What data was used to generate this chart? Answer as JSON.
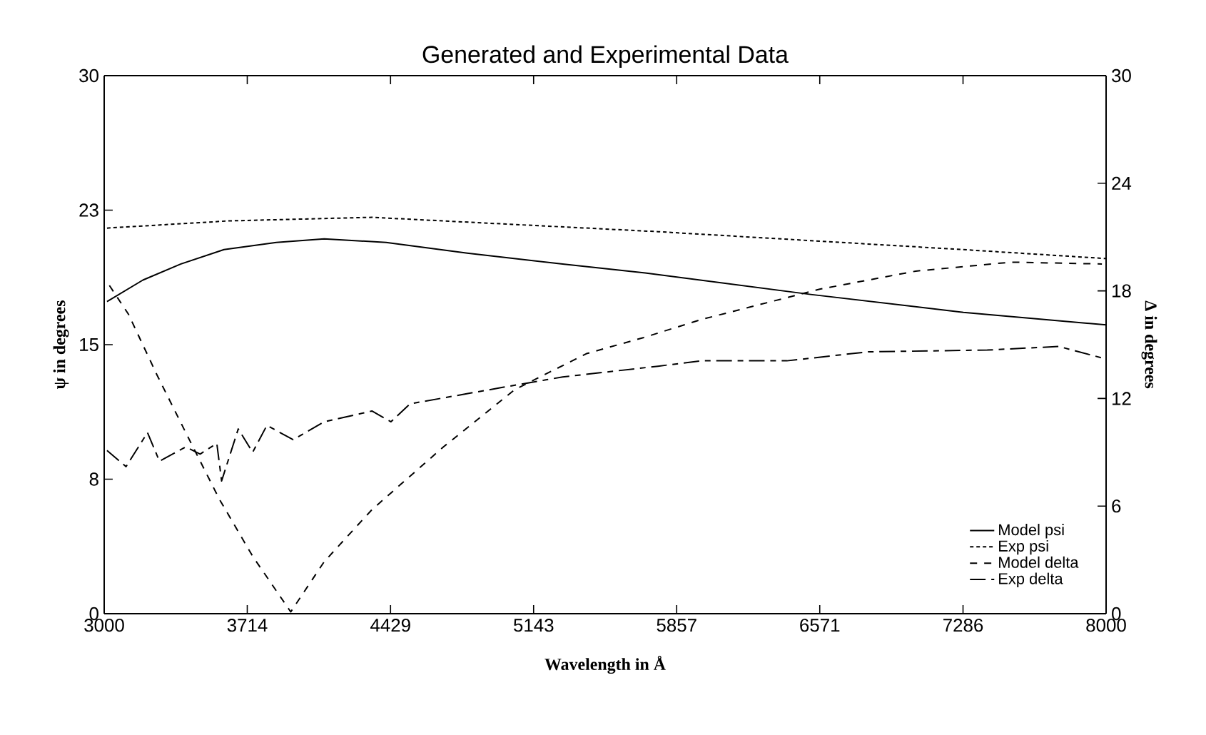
{
  "chart_data": {
    "type": "line",
    "title": "Generated and Experimental Data",
    "xlabel": "Wavelength in Å",
    "ylabel": "ψ in degrees",
    "y2label": "Δ in degrees",
    "xlim": [
      3000,
      8000
    ],
    "xticks": [
      3000,
      3714,
      4429,
      5143,
      5857,
      6571,
      7286,
      8000
    ],
    "ylim": [
      0,
      30
    ],
    "yticks": [
      0,
      {
        "value": 7.5,
        "label": "8"
      },
      15,
      {
        "value": 22.5,
        "label": "23"
      },
      30
    ],
    "y2lim": [
      0,
      30
    ],
    "y2ticks": [
      0,
      6,
      12,
      18,
      24,
      30
    ],
    "legend": "bottom right",
    "grid": false,
    "marker": "none",
    "series": [
      {
        "name": "Model psi",
        "color": "#000000",
        "line_style": "solid",
        "x": [
          3014,
          3193,
          3383,
          3598,
          3859,
          4098,
          4407,
          4812,
          5288,
          5700,
          6526,
          7288,
          8000
        ],
        "values": [
          17.4,
          18.6,
          19.5,
          20.3,
          20.7,
          20.9,
          20.7,
          20.1,
          19.5,
          19.0,
          17.8,
          16.8,
          16.1
        ]
      },
      {
        "name": "Exp psi",
        "color": "#000000",
        "line_style": "dotted",
        "x": [
          3014,
          3621,
          4336,
          5050,
          5764,
          6526,
          7288,
          8000
        ],
        "values": [
          21.5,
          21.9,
          22.1,
          21.7,
          21.3,
          20.8,
          20.3,
          19.8
        ]
      },
      {
        "name": "Model delta",
        "color": "#000000",
        "line_style": "dashed",
        "axis": "y2",
        "x": [
          3026,
          3121,
          3264,
          3407,
          3574,
          3741,
          3931,
          4098,
          4336,
          4693,
          5050,
          5407,
          5693,
          5979,
          6574,
          7050,
          7526,
          7979
        ],
        "values": [
          18.3,
          16.7,
          13.3,
          10.1,
          6.4,
          3.2,
          0.1,
          2.9,
          5.8,
          9.3,
          12.5,
          14.5,
          15.4,
          16.4,
          18.1,
          19.1,
          19.6,
          19.5
        ]
      },
      {
        "name": "Exp delta",
        "color": "#000000",
        "line_style": "long dashed",
        "axis": "y2",
        "x": [
          3014,
          3109,
          3216,
          3276,
          3407,
          3479,
          3562,
          3586,
          3669,
          3741,
          3812,
          3943,
          4098,
          4336,
          4431,
          4526,
          4979,
          5288,
          5764,
          5979,
          6407,
          6812,
          7407,
          7764,
          8000
        ],
        "values": [
          9.1,
          8.2,
          10.1,
          8.5,
          9.3,
          8.9,
          9.5,
          7.4,
          10.3,
          9.0,
          10.5,
          9.7,
          10.7,
          11.3,
          10.7,
          11.7,
          12.6,
          13.2,
          13.8,
          14.1,
          14.1,
          14.6,
          14.7,
          14.9,
          14.2
        ]
      }
    ]
  }
}
